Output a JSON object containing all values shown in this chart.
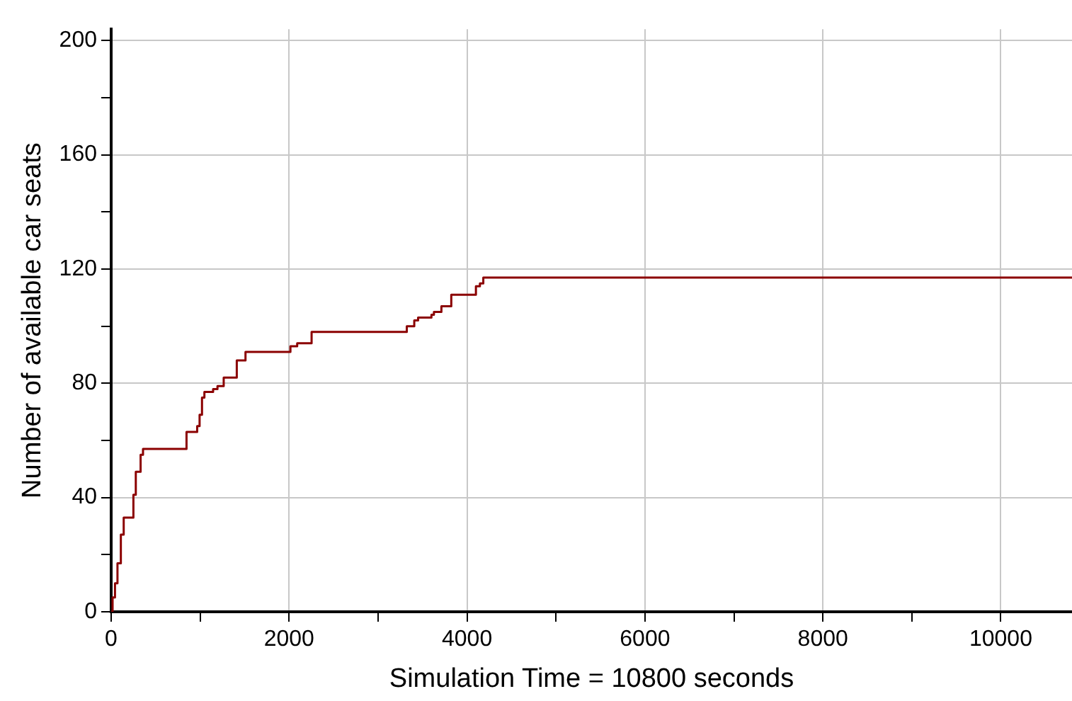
{
  "chart_data": {
    "type": "step",
    "xlabel": "Simulation Time = 10800 seconds",
    "ylabel": "Number of available car seats",
    "series": [
      {
        "color": "#8b0000",
        "x": [
          0,
          16,
          43,
          71,
          109,
          141,
          250,
          277,
          331,
          358,
          847,
          967,
          994,
          1021,
          1048,
          1146,
          1195,
          1265,
          1412,
          1510,
          2015,
          2091,
          2253,
          3323,
          3407,
          3450,
          3600,
          3628,
          3712,
          3823,
          4100,
          4145,
          4183,
          10800
        ],
        "values": [
          0,
          5,
          10,
          17,
          27,
          33,
          41,
          49,
          55,
          57,
          63,
          65,
          69,
          75,
          77,
          78,
          79,
          82,
          88,
          91,
          93,
          94,
          98,
          100,
          102,
          103,
          104,
          105,
          107,
          111,
          114,
          115,
          117,
          117
        ]
      }
    ],
    "xlim": [
      0,
      10800
    ],
    "ylim": [
      0,
      204
    ],
    "xticks": [
      0,
      {
        "value": 1000,
        "label": null
      },
      2000,
      {
        "value": 3000,
        "label": null
      },
      4000,
      {
        "value": 5000,
        "label": null
      },
      6000,
      {
        "value": 7000,
        "label": null
      },
      8000,
      {
        "value": 9000,
        "label": null
      },
      10000
    ],
    "yticks": [
      0,
      {
        "value": 20,
        "label": null
      },
      40,
      {
        "value": 60,
        "label": null
      },
      80,
      {
        "value": 100,
        "label": null
      },
      120,
      {
        "value": 140,
        "label": null
      },
      160,
      {
        "value": 180,
        "label": null
      },
      200
    ],
    "grid": true,
    "legend": false
  }
}
